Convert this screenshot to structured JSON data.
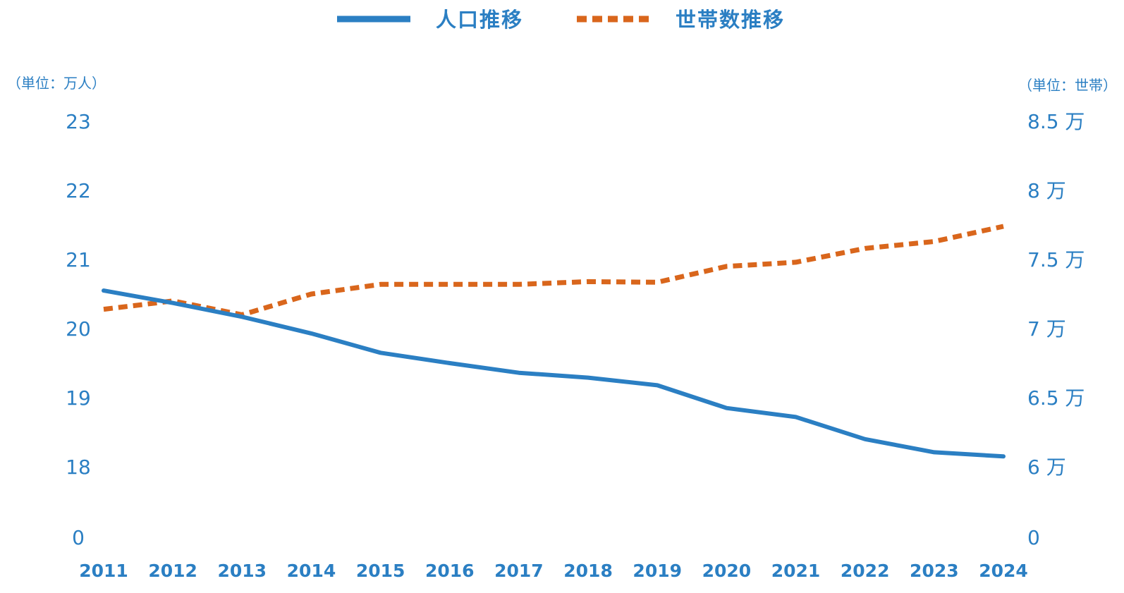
{
  "chart_data": {
    "type": "line",
    "x": [
      "2011",
      "2012",
      "2013",
      "2014",
      "2015",
      "2016",
      "2017",
      "2018",
      "2019",
      "2020",
      "2021",
      "2022",
      "2023",
      "2024"
    ],
    "series": [
      {
        "name": "人口推移",
        "axis": "left",
        "color": "#2b7fc3",
        "style": "solid",
        "values": [
          20.55,
          20.37,
          20.17,
          19.93,
          19.65,
          19.5,
          19.36,
          19.29,
          19.18,
          18.85,
          18.72,
          18.4,
          18.21,
          18.15
        ]
      },
      {
        "name": "世帯数推移",
        "axis": "right",
        "color": "#d9661c",
        "style": "dashed",
        "values": [
          71400,
          72000,
          71000,
          72500,
          73200,
          73200,
          73200,
          73400,
          73350,
          74500,
          74800,
          75800,
          76300,
          77400
        ]
      }
    ],
    "left_axis": {
      "unit_label": "（単位：万人）",
      "tick_labels": [
        "0",
        "18",
        "19",
        "20",
        "21",
        "22",
        "23"
      ],
      "ylim": [
        18,
        23
      ],
      "break": "0 to 17"
    },
    "right_axis": {
      "unit_label": "（単位：世帯）",
      "tick_labels": [
        "0",
        "6 万",
        "6.5 万",
        "7 万",
        "7.5 万",
        "8 万",
        "8.5 万"
      ],
      "ylim": [
        60000,
        85000
      ],
      "break": "0 to 50000"
    },
    "legend": {
      "placement": "top-center"
    },
    "grid": false
  }
}
